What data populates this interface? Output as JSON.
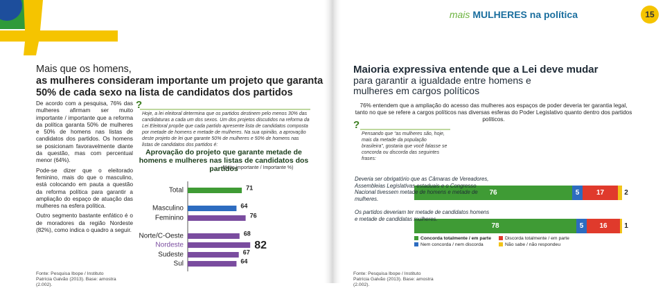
{
  "header": {
    "brand": "mais",
    "title": "MULHERES na política",
    "page": "15"
  },
  "left": {
    "heading": [
      "Mais que os homens,",
      "as mulheres consideram importante um projeto que garanta",
      "50% de cada sexo na lista de candidatos dos partidos"
    ],
    "paragraphs": [
      "De acordo com a pesquisa, 76% das mulheres afirmam ser muito importante / importante que a reforma da política garanta 50% de mulheres e 50% de homens nas listas de candidatos dos partidos. Os homens se posicionam favoravelmente diante da questão, mas com percentual menor (64%).",
      "Pode-se dizer que o eleitorado feminino, mais do que o masculino, está colocando em pauta a questão da reforma política para garantir a ampliação do espaço de atuação das mulheres na esfera política.",
      "Outro segmento bastante enfático é o de moradores da região Nordeste (82%), como indica o quadro a seguir."
    ],
    "source": "Fonte: Pesquisa Ibope / Instituto Patrícia Galvão (2013). Base: amostra (2.002)."
  },
  "middle": {
    "mark": "?",
    "question": "Hoje, a lei eleitoral determina que os partidos destinem pelo menos 30% das candidaturas a cada um dos sexos. Um dos projetos discutidos na reforma da Lei Eleitoral propõe que cada partido apresente lista de candidatos composta por metade de homens e metade de mulheres. Na sua opinião, a aprovação deste projeto de lei que garante 50% de mulheres e 50% de homens nas listas de candidatos dos partidos é:"
  },
  "right": {
    "title": "Maioria expressiva entende que a Lei deve mudar",
    "subtitle": "para garantir a igualdade entre homens e mulheres em cargos políticos",
    "paragraph": "76% entendem que a ampliação do acesso das mulheres aos espaços de poder deveria ter garantia legal, tanto no que se refere a cargos políticos nas diversas esferas do Poder Legislativo quanto dentro dos partidos políticos.",
    "mark": "?",
    "question": "Pensando que “as mulheres são, hoje, mais da metade da população brasileira”, gostaria que você falasse se concorda ou discorda das seguintes frases:",
    "source": "Fonte: Pesquisa Ibope / Instituto Patrícia Galvão (2013). Base: amostra (2.002)."
  },
  "chart_data": [
    {
      "type": "hbar",
      "title": "Aprovação do projeto que garante metade de homens e mulheres nas listas de candidatos dos partidos",
      "subtitle": "Muito importante / Importante %)",
      "categories": [
        "Total",
        "Masculino",
        "Feminino",
        "Norte/C-Oeste",
        "Nordeste",
        "Sudeste",
        "Sul"
      ],
      "values": [
        71,
        64,
        76,
        68,
        82,
        67,
        64
      ],
      "colors": [
        "#3f9b35",
        "#2d6cc0",
        "#7a4c9f",
        "#7a4c9f",
        "#7a4c9f",
        "#7a4c9f",
        "#7a4c9f"
      ]
    },
    {
      "type": "stacked-hbar",
      "categories": [
        "Deveria ser obrigatório que as Câmaras de Vereadores, Assembleias Legislativas estaduais e o Congresso Nacional tivessem metade de homens e metade de mulheres.",
        "Os partidos deveriam ter metade de candidatos homens e metade de candidatas mulheres."
      ],
      "series": [
        {
          "name": "Concorda totalmente / em parte",
          "color": "#3f9b35",
          "values": [
            76,
            78
          ]
        },
        {
          "name": "Nem concorda / nem discorda",
          "color": "#2d6cc0",
          "values": [
            5,
            5
          ]
        },
        {
          "name": "Discorda totalmente / em parte",
          "color": "#e03a2c",
          "values": [
            17,
            16
          ]
        },
        {
          "name": "Não sabe / não respondeu",
          "color": "#f2c318",
          "values": [
            2,
            1
          ]
        }
      ]
    }
  ]
}
